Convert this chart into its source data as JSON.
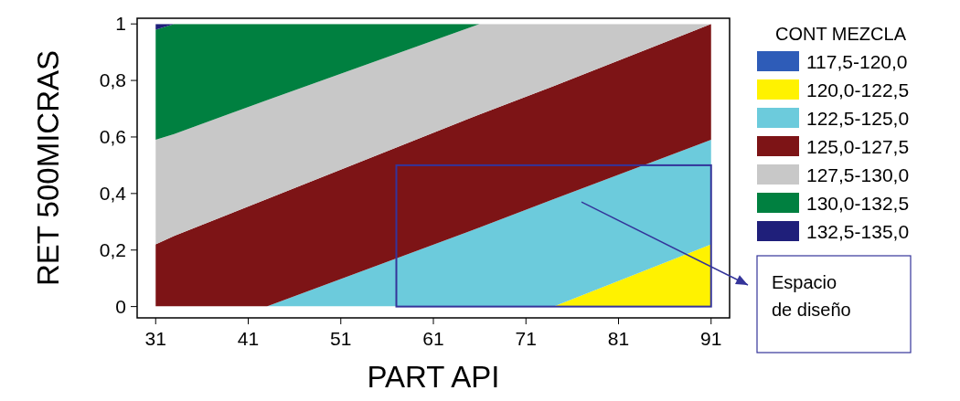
{
  "chart_data": {
    "type": "area",
    "stacked": true,
    "xlabel": "PART API",
    "ylabel": "RET 500MICRAS",
    "legend_title": "CONT MEZCLA",
    "legend": "right",
    "x": [
      31,
      33,
      43,
      66,
      74,
      91
    ],
    "xlim": [
      29,
      93
    ],
    "xticks": [
      31,
      41,
      51,
      61,
      71,
      81,
      91
    ],
    "ylim": [
      -0.04,
      1.02
    ],
    "yticks": [
      0,
      {
        "value": 0.2,
        "label": "0,2"
      },
      {
        "value": 0.4,
        "label": "0,4"
      },
      {
        "value": 0.6,
        "label": "0,6"
      },
      {
        "value": 0.8,
        "label": "0,8"
      },
      1
    ],
    "series": [
      {
        "name": "117,5-120,0",
        "color": "#2e5cb8",
        "values": [
          null,
          null,
          null,
          null,
          null,
          null
        ]
      },
      {
        "name": "120,0-122,5",
        "color": "#fff200",
        "values": [
          0,
          0,
          0,
          0,
          0,
          0.22
        ]
      },
      {
        "name": "122,5-125,0",
        "color": "#6ccbdc",
        "values": [
          0,
          0,
          0,
          0.28,
          0.38,
          0.37
        ]
      },
      {
        "name": "125,0-127,5",
        "color": "#7d1416",
        "values": [
          0.22,
          0.25,
          0.38,
          0.4,
          0.4,
          0.41
        ]
      },
      {
        "name": "127,5-130,0",
        "color": "#c8c8c8",
        "values": [
          0.37,
          0.36,
          0.35,
          0.32,
          0.22,
          0
        ]
      },
      {
        "name": "130,0-132,5",
        "color": "#008040",
        "values": [
          0.39,
          0.39,
          0.27,
          0,
          0,
          0
        ]
      },
      {
        "name": "132,5-135,0",
        "color": "#1f1f7a",
        "values": [
          0.02,
          0,
          0,
          0,
          0,
          0
        ]
      }
    ],
    "annotations": [
      "Espacio de diseño"
    ]
  }
}
